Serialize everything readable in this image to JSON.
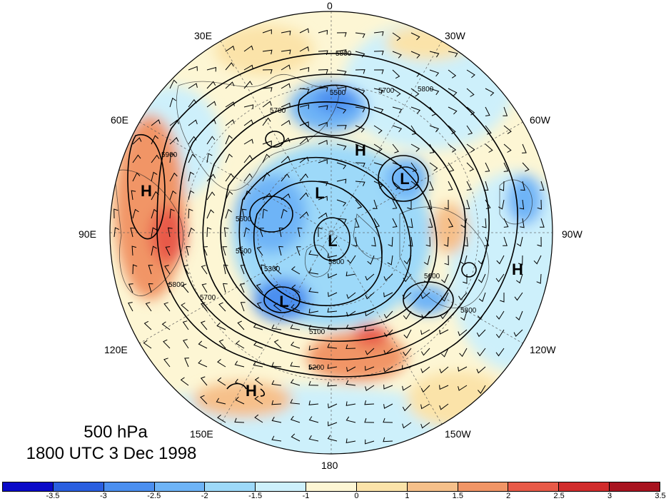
{
  "map": {
    "level_label": "500 hPa",
    "time_label": "1800 UTC 3 Dec 1998",
    "longitude_labels": [
      "0",
      "30W",
      "60W",
      "90W",
      "120W",
      "150W",
      "180",
      "150E",
      "120E",
      "90E",
      "60E",
      "30E"
    ],
    "pressure_centers": [
      "H",
      "H",
      "H",
      "H",
      "L",
      "L",
      "L",
      "L"
    ],
    "contour_labels": [
      "5800",
      "5700",
      "5500",
      "5800",
      "5700",
      "5900",
      "5800",
      "5700",
      "5600",
      "5500",
      "5300",
      "5100",
      "5200",
      "5800",
      "5600",
      "5800"
    ],
    "colorbar": {
      "colors": [
        "#0a0ac8",
        "#2a5fe0",
        "#4b8ff0",
        "#6eb4f7",
        "#9dd9f9",
        "#cdf0fb",
        "#fdf6d4",
        "#fbe3a9",
        "#f6c08a",
        "#f19566",
        "#e85a48",
        "#d12c2c",
        "#a8131f"
      ],
      "tick_labels": [
        "-3.5",
        "-3",
        "-2.5",
        "-2",
        "-1.5",
        "-1",
        "0",
        "1",
        "1.5",
        "2",
        "2.5",
        "3",
        "3.5"
      ]
    }
  }
}
